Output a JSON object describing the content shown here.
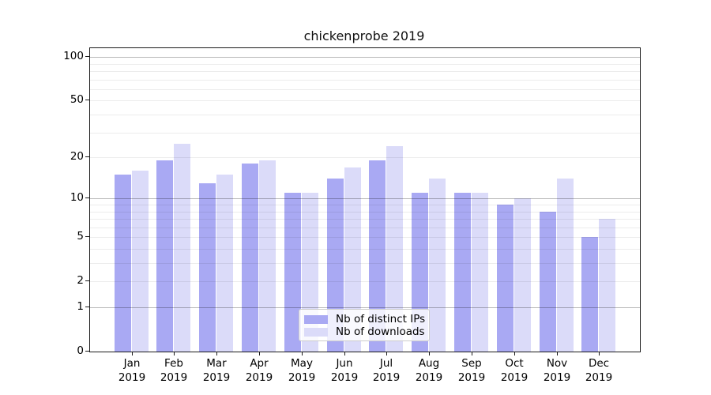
{
  "chart_data": {
    "type": "bar",
    "title": "chickenprobe 2019",
    "categories": [
      "Jan",
      "Feb",
      "Mar",
      "Apr",
      "May",
      "Jun",
      "Jul",
      "Aug",
      "Sep",
      "Oct",
      "Nov",
      "Dec"
    ],
    "x_sublabel": "2019",
    "series": [
      {
        "name": "Nb of distinct IPs",
        "color": "#a9a9f3",
        "values": [
          15,
          19,
          13,
          18,
          11,
          14,
          19,
          11,
          11,
          9,
          8,
          5
        ]
      },
      {
        "name": "Nb of downloads",
        "color": "#dbdbf9",
        "values": [
          16,
          25,
          15,
          19,
          11,
          17,
          24,
          14,
          11,
          10,
          14,
          7
        ]
      }
    ],
    "yscale": "log10(1+x)",
    "yticks": [
      0,
      1,
      2,
      5,
      10,
      20,
      50,
      100
    ],
    "ylim": [
      0,
      115
    ],
    "grid": {
      "orientation": "horizontal",
      "major_values": [
        1,
        10,
        100
      ],
      "minor_values": [
        2,
        3,
        4,
        5,
        6,
        7,
        8,
        9,
        20,
        30,
        40,
        50,
        60,
        70,
        80,
        90
      ],
      "major_color": "rgba(0,0,0,0.28)",
      "minor_color": "rgba(0,0,0,0.075)",
      "on_top_of_bars": true
    },
    "legend": {
      "position": "lower center"
    }
  }
}
